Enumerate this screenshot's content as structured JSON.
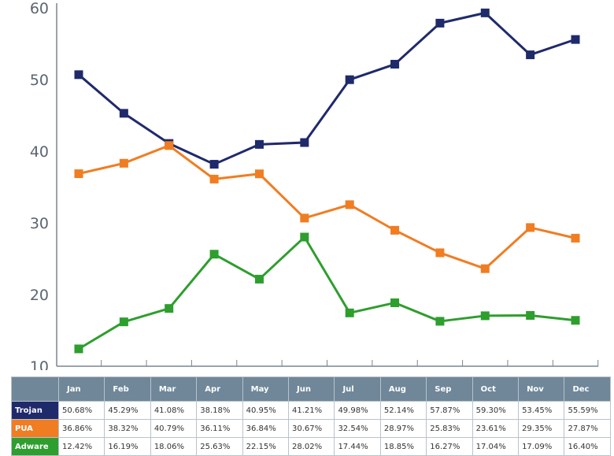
{
  "chart_data": {
    "type": "line",
    "categories": [
      "Jan",
      "Feb",
      "Mar",
      "Apr",
      "May",
      "Jun",
      "Jul",
      "Aug",
      "Sep",
      "Oct",
      "Nov",
      "Dec"
    ],
    "ylim": [
      10,
      60
    ],
    "yticks": [
      10,
      20,
      30,
      40,
      50,
      60
    ],
    "grid": false,
    "series": [
      {
        "name": "Trojan",
        "color": "#1f2a6b",
        "values": [
          50.68,
          45.29,
          41.08,
          38.18,
          40.95,
          41.21,
          49.98,
          52.14,
          57.87,
          59.3,
          53.45,
          55.59
        ],
        "labels": [
          "50.68%",
          "45.29%",
          "41.08%",
          "38.18%",
          "40.95%",
          "41.21%",
          "49.98%",
          "52.14%",
          "57.87%",
          "59.30%",
          "53.45%",
          "55.59%"
        ]
      },
      {
        "name": "PUA",
        "color": "#f07d22",
        "values": [
          36.86,
          38.32,
          40.79,
          36.11,
          36.84,
          30.67,
          32.54,
          28.97,
          25.83,
          23.61,
          29.35,
          27.87
        ],
        "labels": [
          "36.86%",
          "38.32%",
          "40.79%",
          "36.11%",
          "36.84%",
          "30.67%",
          "32.54%",
          "28.97%",
          "25.83%",
          "23.61%",
          "29.35%",
          "27.87%"
        ]
      },
      {
        "name": "Adware",
        "color": "#2e9e2e",
        "values": [
          12.42,
          16.19,
          18.06,
          25.63,
          22.15,
          28.02,
          17.44,
          18.85,
          16.27,
          17.04,
          17.09,
          16.4
        ],
        "labels": [
          "12.42%",
          "16.19%",
          "18.06%",
          "25.63%",
          "22.15%",
          "28.02%",
          "17.44%",
          "18.85%",
          "16.27%",
          "17.04%",
          "17.09%",
          "16.40%"
        ]
      }
    ]
  }
}
